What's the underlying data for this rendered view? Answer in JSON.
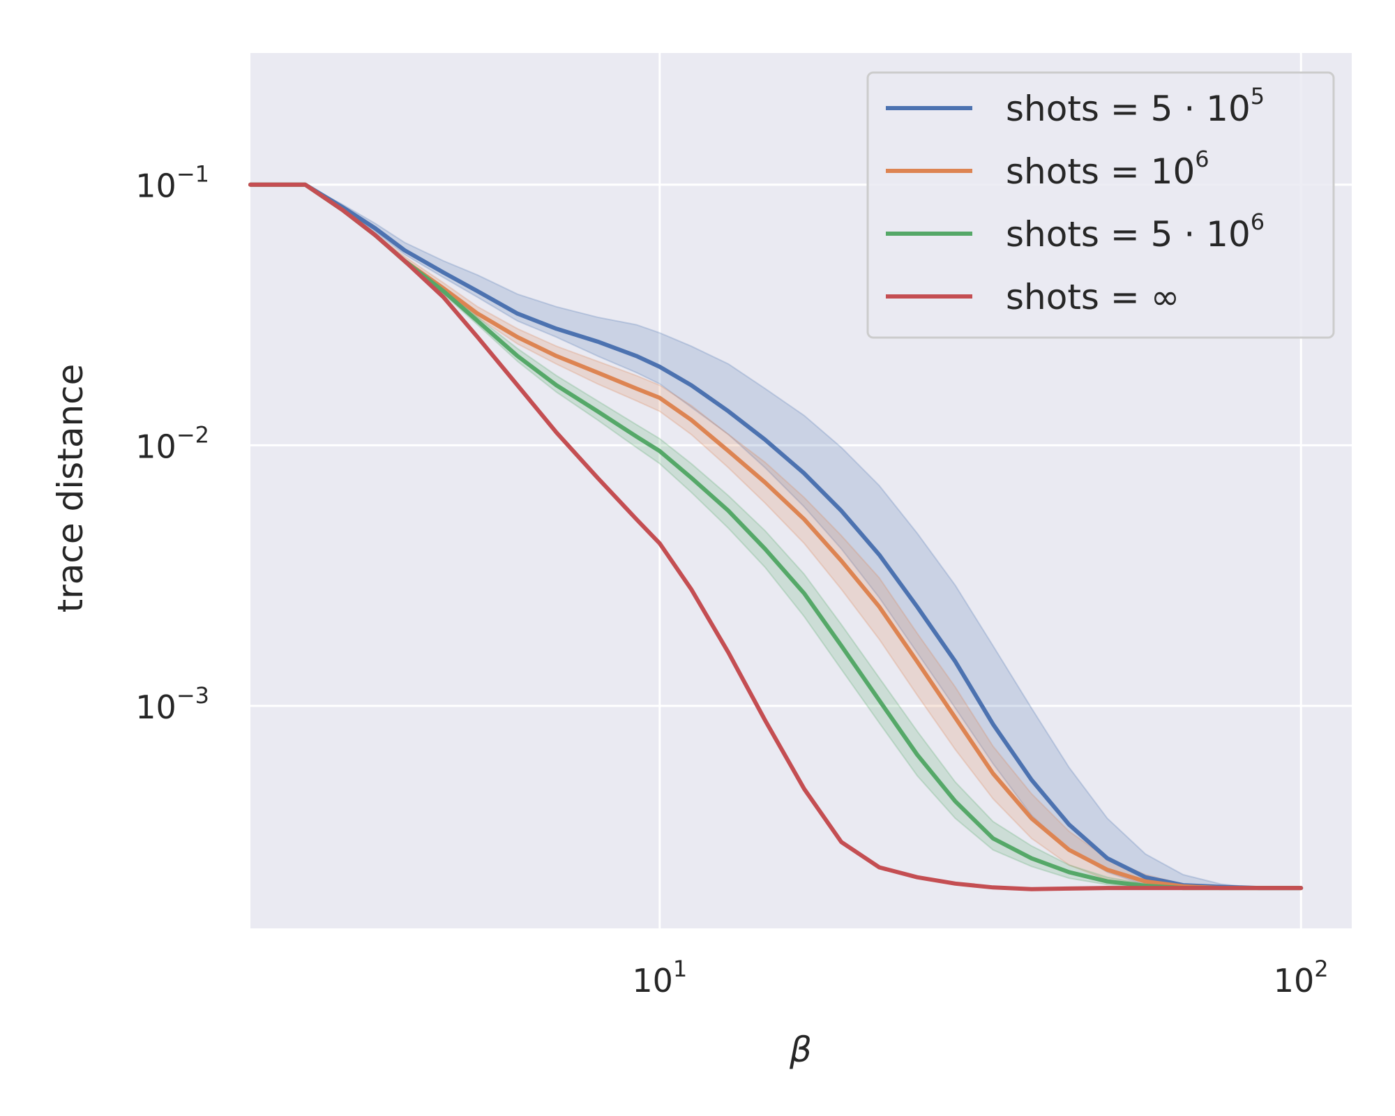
{
  "chart_data": {
    "type": "line",
    "xlabel": "β",
    "ylabel": "trace distance",
    "xscale": "log",
    "yscale": "log",
    "xlim": [
      2.3,
      120
    ],
    "ylim": [
      0.00014,
      0.32
    ],
    "grid": true,
    "legend_position": "upper right",
    "x_ticks": [
      {
        "value": 10,
        "base": "10",
        "exp": "1"
      },
      {
        "value": 100,
        "base": "10",
        "exp": "2"
      }
    ],
    "y_ticks": [
      {
        "value": 0.1,
        "base": "10",
        "exp": "−1"
      },
      {
        "value": 0.01,
        "base": "10",
        "exp": "−2"
      },
      {
        "value": 0.001,
        "base": "10",
        "exp": "−3"
      }
    ],
    "x": [
      2.3,
      2.8,
      3.2,
      3.6,
      4.0,
      4.6,
      5.2,
      6.0,
      6.9,
      8.0,
      9.2,
      10.0,
      11.2,
      12.8,
      14.6,
      16.8,
      19.2,
      22.0,
      25.2,
      28.9,
      33.1,
      38.0,
      43.5,
      49.9,
      57.2,
      65.5,
      75.0,
      86.0,
      100.0
    ],
    "series": [
      {
        "label_text": "shots = 5 · 10",
        "label_exp": "5",
        "color": "#4c72b0",
        "band_color": "#4c72b0",
        "values": [
          0.1,
          0.1,
          0.082,
          0.068,
          0.056,
          0.046,
          0.039,
          0.032,
          0.028,
          0.025,
          0.022,
          0.02,
          0.017,
          0.0135,
          0.0105,
          0.0078,
          0.0056,
          0.0038,
          0.0024,
          0.00148,
          0.00085,
          0.00052,
          0.00035,
          0.00026,
          0.00022,
          0.000205,
          0.000202,
          0.0002,
          0.0002
        ],
        "lower": [
          0.1,
          0.1,
          0.081,
          0.066,
          0.054,
          0.044,
          0.037,
          0.03,
          0.026,
          0.022,
          0.019,
          0.0172,
          0.014,
          0.011,
          0.0082,
          0.0058,
          0.004,
          0.0026,
          0.0016,
          0.00098,
          0.0006,
          0.00038,
          0.00028,
          0.00023,
          0.000205,
          0.0002,
          0.0002,
          0.0002,
          0.0002
        ],
        "upper": [
          0.1,
          0.1,
          0.084,
          0.071,
          0.06,
          0.051,
          0.045,
          0.038,
          0.034,
          0.031,
          0.029,
          0.027,
          0.024,
          0.0205,
          0.0165,
          0.013,
          0.0098,
          0.007,
          0.0046,
          0.0029,
          0.0017,
          0.00098,
          0.00058,
          0.00037,
          0.00027,
          0.000225,
          0.000207,
          0.0002,
          0.0002
        ]
      },
      {
        "label_text": "shots = 10",
        "label_exp": "6",
        "color": "#dd8452",
        "band_color": "#dd8452",
        "values": [
          0.1,
          0.1,
          0.08,
          0.064,
          0.051,
          0.04,
          0.032,
          0.026,
          0.022,
          0.019,
          0.0165,
          0.0152,
          0.0125,
          0.0095,
          0.0072,
          0.0052,
          0.0036,
          0.0024,
          0.00148,
          0.0009,
          0.00055,
          0.00037,
          0.00028,
          0.000235,
          0.000212,
          0.000203,
          0.0002,
          0.0002,
          0.0002
        ],
        "lower": [
          0.1,
          0.1,
          0.079,
          0.063,
          0.05,
          0.039,
          0.031,
          0.0245,
          0.0205,
          0.0172,
          0.0148,
          0.0135,
          0.011,
          0.0082,
          0.006,
          0.0042,
          0.0028,
          0.0018,
          0.0011,
          0.00068,
          0.00044,
          0.00031,
          0.000245,
          0.000215,
          0.000204,
          0.0002,
          0.0002,
          0.0002,
          0.0002
        ],
        "upper": [
          0.1,
          0.1,
          0.081,
          0.065,
          0.053,
          0.042,
          0.034,
          0.028,
          0.024,
          0.021,
          0.0185,
          0.017,
          0.0142,
          0.011,
          0.0086,
          0.0063,
          0.0045,
          0.0031,
          0.0019,
          0.00118,
          0.0007,
          0.00046,
          0.00033,
          0.00026,
          0.000225,
          0.000207,
          0.000201,
          0.0002,
          0.0002
        ]
      },
      {
        "label_text": "shots = 5 · 10",
        "label_exp": "6",
        "color": "#55a868",
        "band_color": "#55a868",
        "values": [
          0.1,
          0.1,
          0.08,
          0.064,
          0.051,
          0.039,
          0.03,
          0.022,
          0.017,
          0.0135,
          0.0108,
          0.0095,
          0.0075,
          0.0056,
          0.004,
          0.0027,
          0.0017,
          0.00105,
          0.00065,
          0.00043,
          0.00031,
          0.00026,
          0.00023,
          0.000212,
          0.000204,
          0.0002,
          0.0002,
          0.0002,
          0.0002
        ],
        "lower": [
          0.1,
          0.1,
          0.079,
          0.063,
          0.05,
          0.038,
          0.029,
          0.021,
          0.016,
          0.0125,
          0.0098,
          0.0085,
          0.0066,
          0.0048,
          0.0034,
          0.0022,
          0.00138,
          0.00086,
          0.00054,
          0.00037,
          0.00028,
          0.000242,
          0.000218,
          0.000206,
          0.000201,
          0.0002,
          0.0002,
          0.0002,
          0.0002
        ],
        "upper": [
          0.1,
          0.1,
          0.081,
          0.065,
          0.052,
          0.04,
          0.031,
          0.0235,
          0.0185,
          0.0148,
          0.012,
          0.0106,
          0.0085,
          0.0064,
          0.0047,
          0.0032,
          0.00205,
          0.00128,
          0.0008,
          0.00051,
          0.00036,
          0.00029,
          0.000245,
          0.00022,
          0.000207,
          0.000201,
          0.0002,
          0.0002,
          0.0002
        ]
      },
      {
        "label_text": "shots = ∞",
        "label_exp": "",
        "color": "#c44e52",
        "values": [
          0.1,
          0.1,
          0.08,
          0.064,
          0.051,
          0.037,
          0.026,
          0.017,
          0.0112,
          0.0075,
          0.0052,
          0.0042,
          0.0028,
          0.0016,
          0.00088,
          0.00048,
          0.0003,
          0.00024,
          0.00022,
          0.000208,
          0.000201,
          0.000198,
          0.000199,
          0.0002,
          0.0002,
          0.0002,
          0.0002,
          0.0002,
          0.0002
        ]
      }
    ]
  }
}
